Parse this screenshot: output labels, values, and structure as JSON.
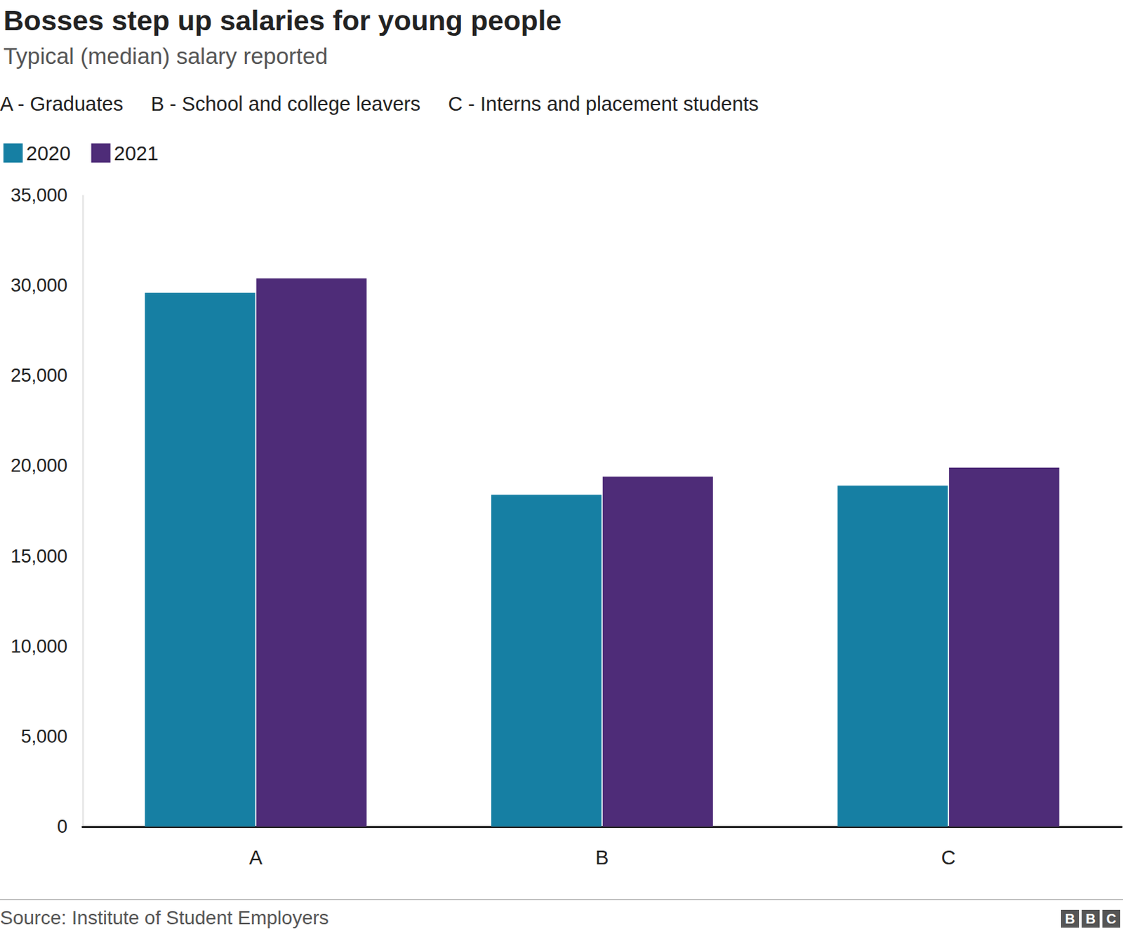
{
  "chart_data": {
    "type": "bar",
    "title": "Bosses step up salaries for young people",
    "subtitle": "Typical (median) salary reported",
    "annotations": [
      "A - Graduates",
      "B - School and college leavers",
      "C - Interns and placement students"
    ],
    "categories": [
      "A",
      "B",
      "C"
    ],
    "series": [
      {
        "name": "2020",
        "color": "#167fa3",
        "values": [
          29600,
          18400,
          18900
        ]
      },
      {
        "name": "2021",
        "color": "#4e2c78",
        "values": [
          30400,
          19400,
          19900
        ]
      }
    ],
    "ylim": [
      0,
      35000
    ],
    "yticks": [
      0,
      {
        "value": 5000,
        "label": "5,000"
      },
      {
        "value": 10000,
        "label": "10,000"
      },
      {
        "value": 15000,
        "label": "15,000"
      },
      {
        "value": 20000,
        "label": "20,000"
      },
      {
        "value": 25000,
        "label": "25,000"
      },
      {
        "value": 30000,
        "label": "30,000"
      },
      {
        "value": 35000,
        "label": "35,000"
      }
    ],
    "grid": false,
    "legend": "top-left",
    "data_labels": false,
    "source": "Source: Institute of Student Employers",
    "branding": "BBC"
  }
}
